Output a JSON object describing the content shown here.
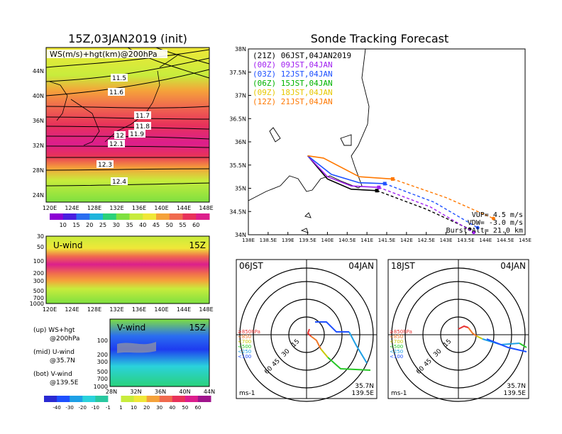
{
  "left": {
    "title": "15Z,03JAN2019 (init)",
    "map_label": "WS(m/s)+hgt(km)@200hPa",
    "lon_ticks": [
      "120E",
      "124E",
      "128E",
      "132E",
      "136E",
      "140E",
      "144E",
      "148E"
    ],
    "lat_ticks": [
      "44N",
      "40N",
      "36N",
      "32N",
      "28N",
      "24N"
    ],
    "contours": [
      "11.5",
      "11.6",
      "11.7",
      "11.8",
      "11.9",
      "12",
      "12.1",
      "12.3",
      "12.4"
    ],
    "ws_colorbar": [
      "10",
      "15",
      "20",
      "25",
      "30",
      "35",
      "40",
      "45",
      "50",
      "55",
      "60"
    ],
    "uwind": {
      "title": "U-wind",
      "time": "15Z",
      "levels": [
        "30",
        "50",
        "100",
        "200",
        "300",
        "500",
        "700",
        "1000"
      ]
    },
    "vwind": {
      "title": "V-wind",
      "time": "15Z",
      "levels": [
        "100",
        "200",
        "300",
        "500",
        "700",
        "1000"
      ],
      "lat_ticks": [
        "28N",
        "32N",
        "36N",
        "40N",
        "44N"
      ]
    },
    "legend_text": [
      {
        "a": "(up) WS+hgt",
        "b": "@200hPa"
      },
      {
        "a": "(mid) U-wind",
        "b": "@35.7N"
      },
      {
        "a": "(bot) V-wind",
        "b": "@139.5E"
      }
    ],
    "v_colorbar": [
      "-40",
      "-30",
      "-20",
      "-10",
      "-1",
      "1",
      "10",
      "20",
      "30",
      "40",
      "50",
      "60"
    ],
    "colors": {
      "ws": [
        "#8c00d4",
        "#4a1ee0",
        "#2a6ef0",
        "#1eb4dc",
        "#2ad27a",
        "#7ee040",
        "#c8ec3c",
        "#f0e838",
        "#f5a23a",
        "#f06a4e",
        "#e8325a",
        "#dc1e8c"
      ]
    }
  },
  "tracking": {
    "title": "Sonde Tracking Forecast",
    "lat_ticks": [
      "38N",
      "37.5N",
      "37N",
      "36.5N",
      "36N",
      "35.5N",
      "35N",
      "34.5N",
      "34N"
    ],
    "lon_ticks": [
      "138E",
      "138.5E",
      "139E",
      "139.5E",
      "140E",
      "140.5E",
      "141E",
      "141.5E",
      "142E",
      "142.5E",
      "143E",
      "143.5E",
      "144E",
      "144.5E",
      "145E"
    ],
    "launches": [
      {
        "label": "(21Z) 06JST,04JAN2019",
        "color": "#000000"
      },
      {
        "label": "(00Z) 09JST,04JAN",
        "color": "#a020f0"
      },
      {
        "label": "(03Z) 12JST,04JAN",
        "color": "#1e50ff"
      },
      {
        "label": "(06Z) 15JST,04JAN",
        "color": "#00b400"
      },
      {
        "label": "(09Z) 18JST,04JAN",
        "color": "#e6c800"
      },
      {
        "label": "(12Z) 21JST,04JAN",
        "color": "#ff7800"
      }
    ],
    "params": [
      "VUP=  4.5 m/s",
      "VDW= -3.0 m/s",
      "Burst Alt= 21.0 km"
    ],
    "chart_data": {
      "type": "line",
      "xlim": [
        138,
        145
      ],
      "ylim": [
        34,
        38
      ],
      "series": [
        {
          "name": "(21Z) 06JST,04JAN2019",
          "burst": [
            141.25,
            34.95
          ],
          "path": [
            [
              139.5,
              35.7
            ],
            [
              140.0,
              35.2
            ],
            [
              140.6,
              34.98
            ],
            [
              141.25,
              34.95
            ],
            [
              142.5,
              34.55
            ],
            [
              143.6,
              34.12
            ]
          ]
        },
        {
          "name": "(00Z) 09JST,04JAN",
          "burst": [
            141.3,
            35.02
          ],
          "path": [
            [
              139.5,
              35.7
            ],
            [
              140.0,
              35.25
            ],
            [
              140.6,
              35.05
            ],
            [
              141.3,
              35.02
            ],
            [
              142.6,
              34.6
            ],
            [
              143.7,
              34.05
            ]
          ]
        },
        {
          "name": "(03Z) 12JST,04JAN",
          "burst": [
            141.45,
            35.1
          ],
          "path": [
            [
              139.5,
              35.7
            ],
            [
              140.1,
              35.3
            ],
            [
              140.8,
              35.12
            ],
            [
              141.45,
              35.1
            ],
            [
              142.7,
              34.7
            ],
            [
              143.8,
              34.15
            ]
          ]
        },
        {
          "name": "(12Z) 21JST,04JAN",
          "burst": [
            141.65,
            35.2
          ],
          "path": [
            [
              139.5,
              35.7
            ],
            [
              139.9,
              35.65
            ],
            [
              140.8,
              35.25
            ],
            [
              141.65,
              35.2
            ],
            [
              143.0,
              34.8
            ],
            [
              144.2,
              34.35
            ]
          ]
        }
      ]
    }
  },
  "hodo": [
    {
      "title": "06JST",
      "date": "04JAN",
      "levels": [
        "≥850hPa",
        "<850",
        "<700",
        "<500",
        "<250",
        "<100"
      ],
      "rings": [
        "15",
        "30",
        "45",
        "60"
      ],
      "unit": "ms-1",
      "lat": "35.7N",
      "lon": "139.5E"
    },
    {
      "title": "18JST",
      "date": "04JAN",
      "levels": [
        "≥850hPa",
        "<850",
        "<700",
        "<500",
        "<250",
        "<100"
      ],
      "rings": [
        "15",
        "30",
        "45",
        "60"
      ],
      "unit": "ms-1",
      "lat": "35.7N",
      "lon": "139.5E"
    }
  ],
  "hodo_level_colors": [
    "#e83232",
    "#f07828",
    "#c8c800",
    "#28c828",
    "#1ea0e6",
    "#1e50ff"
  ]
}
